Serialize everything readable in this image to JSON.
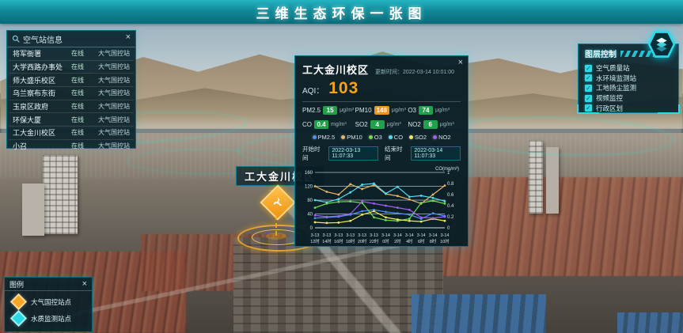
{
  "colors": {
    "accent": "#2bd9e8",
    "aqi_value": "#f6a21c",
    "badge_good": "#23a04c",
    "badge_moderate": "#f0941f"
  },
  "title_bar": {
    "title": "三维生态环保一张图"
  },
  "station_panel": {
    "title": "空气站信息",
    "close": "×",
    "rows": [
      {
        "name": "将军衙署",
        "status": "在线",
        "type": "大气国控站"
      },
      {
        "name": "大学西路办事处",
        "status": "在线",
        "type": "大气国控站"
      },
      {
        "name": "师大盛乐校区",
        "status": "在线",
        "type": "大气国控站"
      },
      {
        "name": "乌兰察布东街",
        "status": "在线",
        "type": "大气国控站"
      },
      {
        "name": "玉泉区政府",
        "status": "在线",
        "type": "大气国控站"
      },
      {
        "name": "环保大厦",
        "status": "在线",
        "type": "大气国控站"
      },
      {
        "name": "工大金川校区",
        "status": "在线",
        "type": "大气国控站"
      },
      {
        "name": "小召",
        "status": "在线",
        "type": "大气国控站"
      }
    ]
  },
  "popup": {
    "title": "工大金川校区",
    "close": "×",
    "update_label": "更新时间：",
    "update_time": "2022-03-14 10:01:00",
    "aqi_label": "AQI：",
    "aqi_value": "103",
    "pollutants": [
      {
        "name": "PM2.5",
        "value": "15",
        "unit": "μg/m³",
        "badge_color": "#23a04c"
      },
      {
        "name": "PM10",
        "value": "148",
        "unit": "μg/m³",
        "badge_color": "#f0941f"
      },
      {
        "name": "O3",
        "value": "74",
        "unit": "μg/m³",
        "badge_color": "#23a04c"
      },
      {
        "name": "CO",
        "value": "0.4",
        "unit": "mg/m³",
        "badge_color": "#23a04c"
      },
      {
        "name": "SO2",
        "value": "4",
        "unit": "μg/m³",
        "badge_color": "#23a04c"
      },
      {
        "name": "NO2",
        "value": "6",
        "unit": "μg/m³",
        "badge_color": "#23a04c"
      }
    ],
    "time_start_label": "开始时间",
    "time_start": "2022-03-13 11:07:33",
    "time_end_label": "结束时间",
    "time_end": "2022-03-14 11:07:33"
  },
  "chart_data": {
    "type": "line",
    "categories": [
      "3-13 12时",
      "3-13 14时",
      "3-13 16时",
      "3-13 18时",
      "3-13 20时",
      "3-13 22时",
      "3-14 0时",
      "3-14 2时",
      "3-14 4时",
      "3-14 6时",
      "3-14 8时",
      "3-14 10时"
    ],
    "series": [
      {
        "name": "PM2.5",
        "color": "#4f8ef0",
        "axis": "left",
        "values": [
          28,
          30,
          32,
          38,
          48,
          52,
          46,
          42,
          38,
          26,
          42,
          34
        ]
      },
      {
        "name": "PM10",
        "color": "#e6b566",
        "axis": "left",
        "values": [
          120,
          104,
          96,
          126,
          112,
          124,
          98,
          92,
          82,
          70,
          96,
          122
        ]
      },
      {
        "name": "O3",
        "color": "#6fdd4e",
        "axis": "left",
        "values": [
          58,
          70,
          75,
          76,
          72,
          30,
          22,
          20,
          26,
          72,
          78,
          70
        ]
      },
      {
        "name": "CO",
        "color": "#56dcf0",
        "axis": "right",
        "values": [
          0.5,
          0.46,
          0.52,
          0.64,
          0.78,
          0.8,
          0.62,
          0.74,
          0.56,
          0.58,
          0.54,
          0.48
        ]
      },
      {
        "name": "SO2",
        "color": "#f2e955",
        "axis": "left",
        "values": [
          16,
          14,
          15,
          20,
          38,
          48,
          30,
          24,
          20,
          18,
          26,
          20
        ]
      },
      {
        "name": "NO2",
        "color": "#a15ef0",
        "axis": "left",
        "values": [
          36,
          32,
          34,
          40,
          76,
          70,
          64,
          58,
          52,
          30,
          28,
          32
        ]
      }
    ],
    "left_axis": {
      "ticks": [
        0,
        40,
        80,
        120,
        160
      ],
      "max": 160
    },
    "right_axis": {
      "label": "CO(mg/m³)",
      "ticks": [
        0,
        0.2,
        0.4,
        0.6,
        0.8,
        1
      ],
      "max": 1
    },
    "grid": true,
    "legend_position": "top"
  },
  "layer_panel": {
    "title": "图层控制",
    "items": [
      {
        "label": "空气质量站",
        "checked": "✓"
      },
      {
        "label": "水环境监测站",
        "checked": "✓"
      },
      {
        "label": "工地扬尘监测",
        "checked": "✓"
      },
      {
        "label": "视频监控",
        "checked": "✓"
      },
      {
        "label": "行政区划",
        "checked": "✓"
      }
    ]
  },
  "legend_panel": {
    "title": "图例",
    "close": "×",
    "items": [
      {
        "label": "大气国控站点",
        "color": "#f5a623"
      },
      {
        "label": "水质监测站点",
        "color": "#29d8e5"
      }
    ]
  },
  "map": {
    "marker_label": "工大金川校区"
  }
}
